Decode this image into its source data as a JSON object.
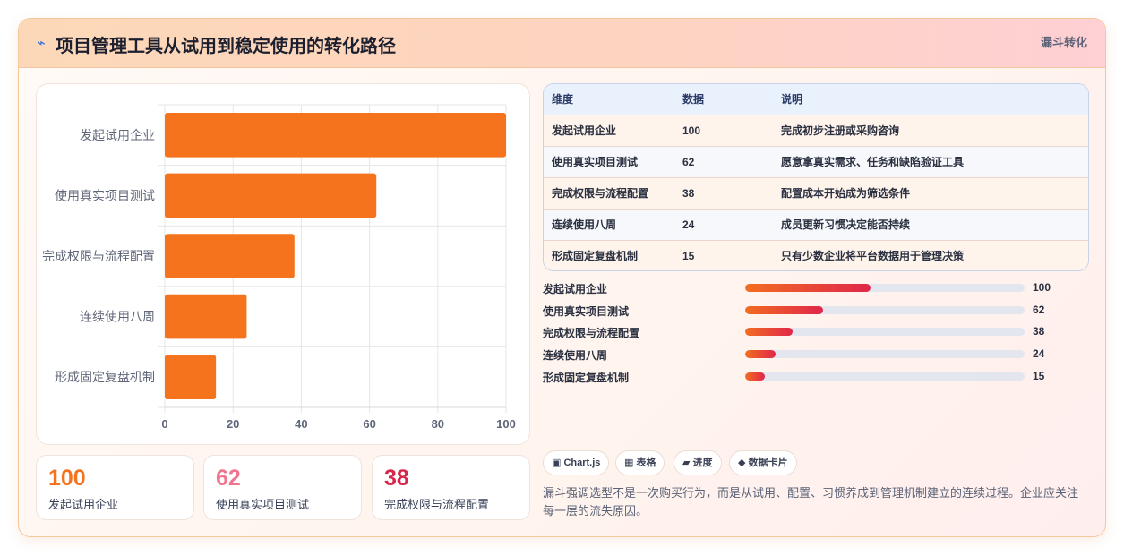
{
  "header": {
    "icon": "bolt-icon",
    "title": "项目管理工具从试用到稳定使用的转化路径",
    "tag": "漏斗转化"
  },
  "colors": {
    "bar": "#f5731c",
    "accent_orange": "#f26d21",
    "accent_red": "#e0264a",
    "stat1": "#f5731c",
    "stat2": "#f0758e",
    "stat3": "#d7264c"
  },
  "chart_data": {
    "type": "bar",
    "orientation": "horizontal",
    "categories": [
      "发起试用企业",
      "使用真实项目测试",
      "完成权限与流程配置",
      "连续使用八周",
      "形成固定复盘机制"
    ],
    "values": [
      100,
      62,
      38,
      24,
      15
    ],
    "xlim": [
      0,
      100
    ],
    "xticks": [
      0,
      20,
      40,
      60,
      80,
      100
    ],
    "grid": true,
    "legend": "none"
  },
  "stats": [
    {
      "value": "100",
      "label": "发起试用企业"
    },
    {
      "value": "62",
      "label": "使用真实项目测试"
    },
    {
      "value": "38",
      "label": "完成权限与流程配置"
    }
  ],
  "table": {
    "headers": [
      "维度",
      "数据",
      "说明"
    ],
    "rows": [
      [
        "发起试用企业",
        "100",
        "完成初步注册或采购咨询"
      ],
      [
        "使用真实项目测试",
        "62",
        "愿意拿真实需求、任务和缺陷验证工具"
      ],
      [
        "完成权限与流程配置",
        "38",
        "配置成本开始成为筛选条件"
      ],
      [
        "连续使用八周",
        "24",
        "成员更新习惯决定能否持续"
      ],
      [
        "形成固定复盘机制",
        "15",
        "只有少数企业将平台数据用于管理决策"
      ]
    ]
  },
  "progress": [
    {
      "label": "发起试用企业",
      "value": "100",
      "fraction": 0.45
    },
    {
      "label": "使用真实项目测试",
      "value": "62",
      "fraction": 0.28
    },
    {
      "label": "完成权限与流程配置",
      "value": "38",
      "fraction": 0.17
    },
    {
      "label": "连续使用八周",
      "value": "24",
      "fraction": 0.11
    },
    {
      "label": "形成固定复盘机制",
      "value": "15",
      "fraction": 0.07
    }
  ],
  "chips": [
    {
      "icon": "chart-icon",
      "label": "▣ Chart.js"
    },
    {
      "icon": "table-icon",
      "label": "▦ 表格"
    },
    {
      "icon": "progress-icon",
      "label": "▰ 进度"
    },
    {
      "icon": "card-icon",
      "label": "◆ 数据卡片"
    }
  ],
  "note": "漏斗强调选型不是一次购买行为，而是从试用、配置、习惯养成到管理机制建立的连续过程。企业应关注每一层的流失原因。"
}
